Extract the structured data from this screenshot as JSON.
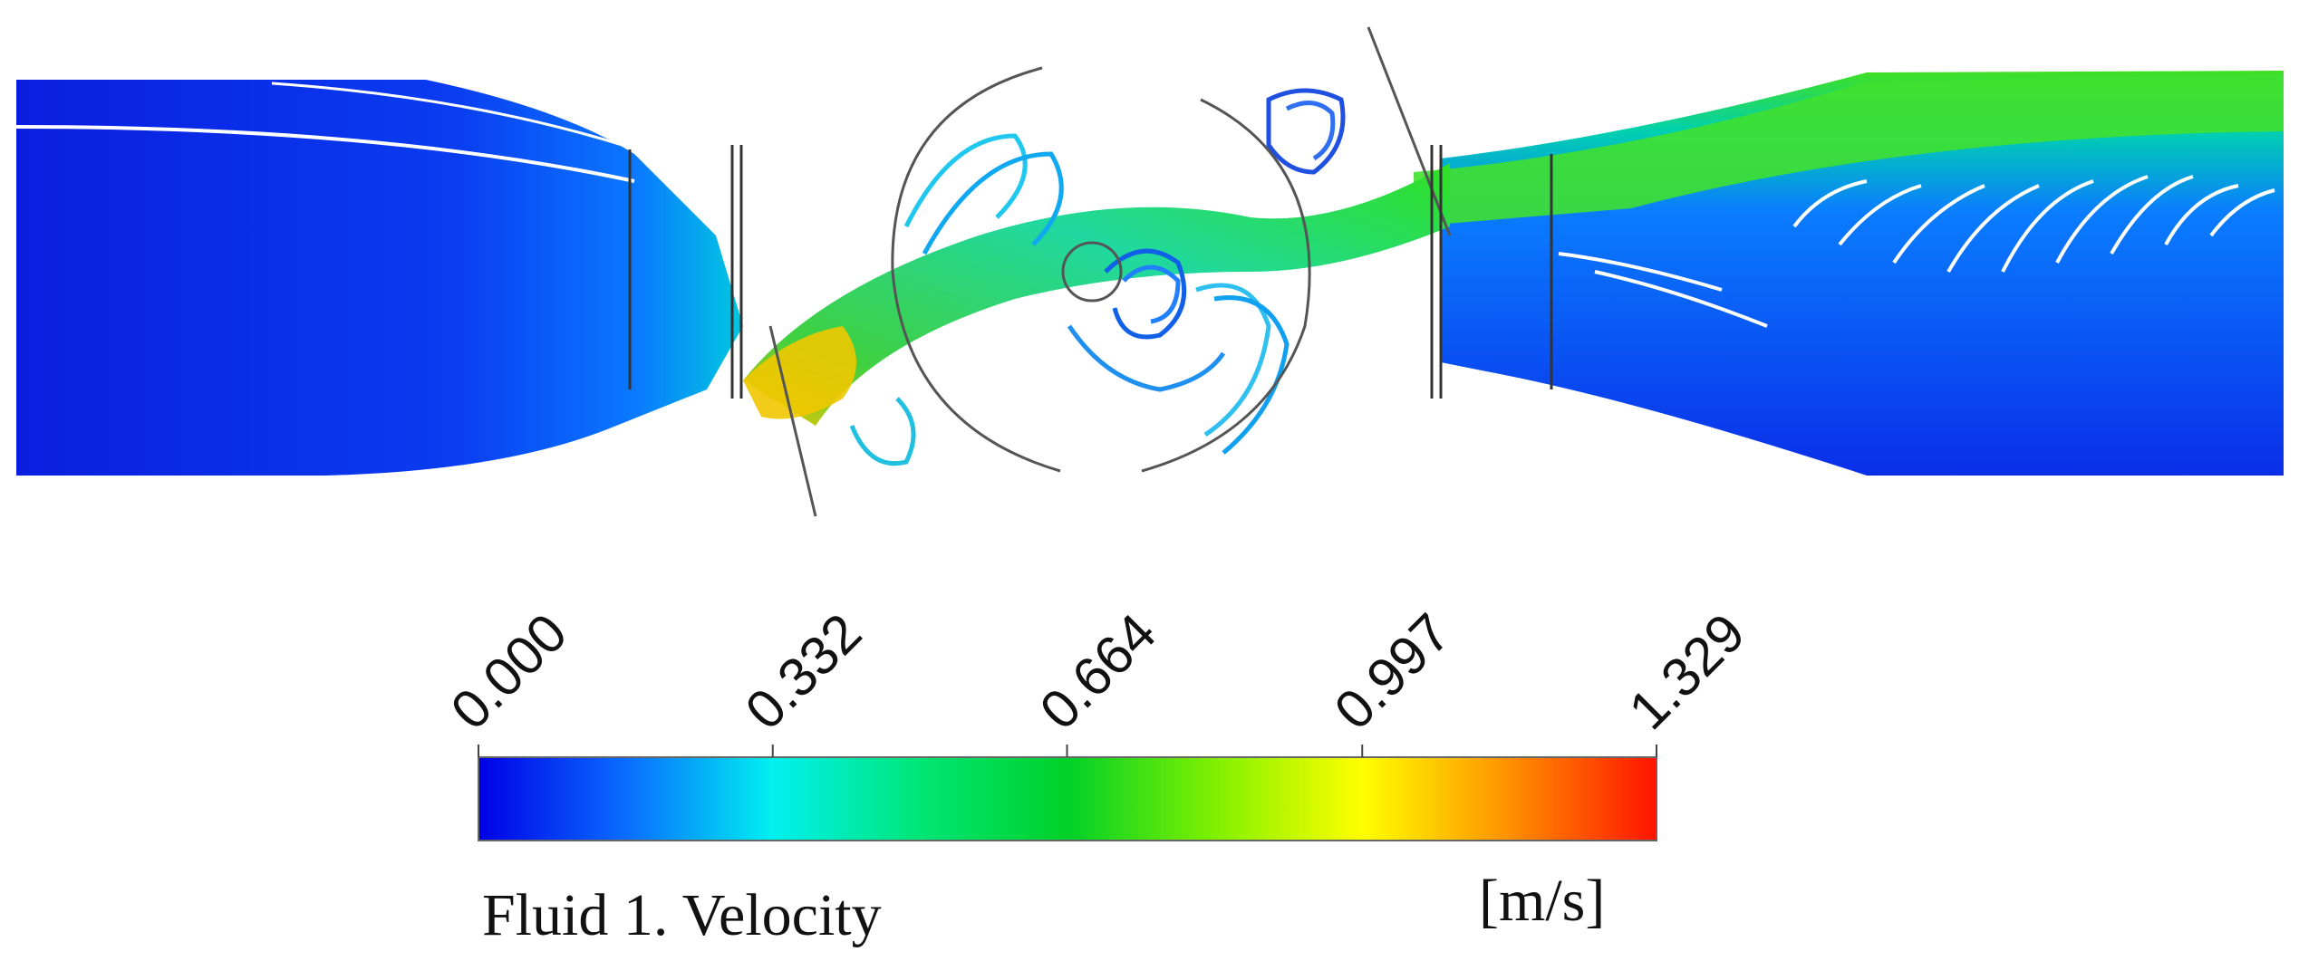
{
  "colorbar": {
    "title": "Fluid 1. Velocity",
    "unit": "[m/s]",
    "min": 0.0,
    "max": 1.329,
    "ticks": [
      {
        "value": 0.0,
        "label": "0.000"
      },
      {
        "value": 0.332,
        "label": "0.332"
      },
      {
        "value": 0.664,
        "label": "0.664"
      },
      {
        "value": 0.997,
        "label": "0.997"
      },
      {
        "value": 1.329,
        "label": "1.329"
      }
    ],
    "color_stops": [
      {
        "value": 0.0,
        "color": "#0000e6"
      },
      {
        "value": 0.166,
        "color": "#0a6cff"
      },
      {
        "value": 0.332,
        "color": "#00f0f0"
      },
      {
        "value": 0.498,
        "color": "#00e676"
      },
      {
        "value": 0.664,
        "color": "#00d028"
      },
      {
        "value": 0.83,
        "color": "#80f000"
      },
      {
        "value": 0.997,
        "color": "#ffff00"
      },
      {
        "value": 1.163,
        "color": "#ff9000"
      },
      {
        "value": 1.329,
        "color": "#ff1400"
      }
    ]
  },
  "colors": {
    "low": "#0020e0",
    "mid": "#00e0c0",
    "high": "#30e020",
    "peak": "#f0d000",
    "outline": "#555555"
  }
}
